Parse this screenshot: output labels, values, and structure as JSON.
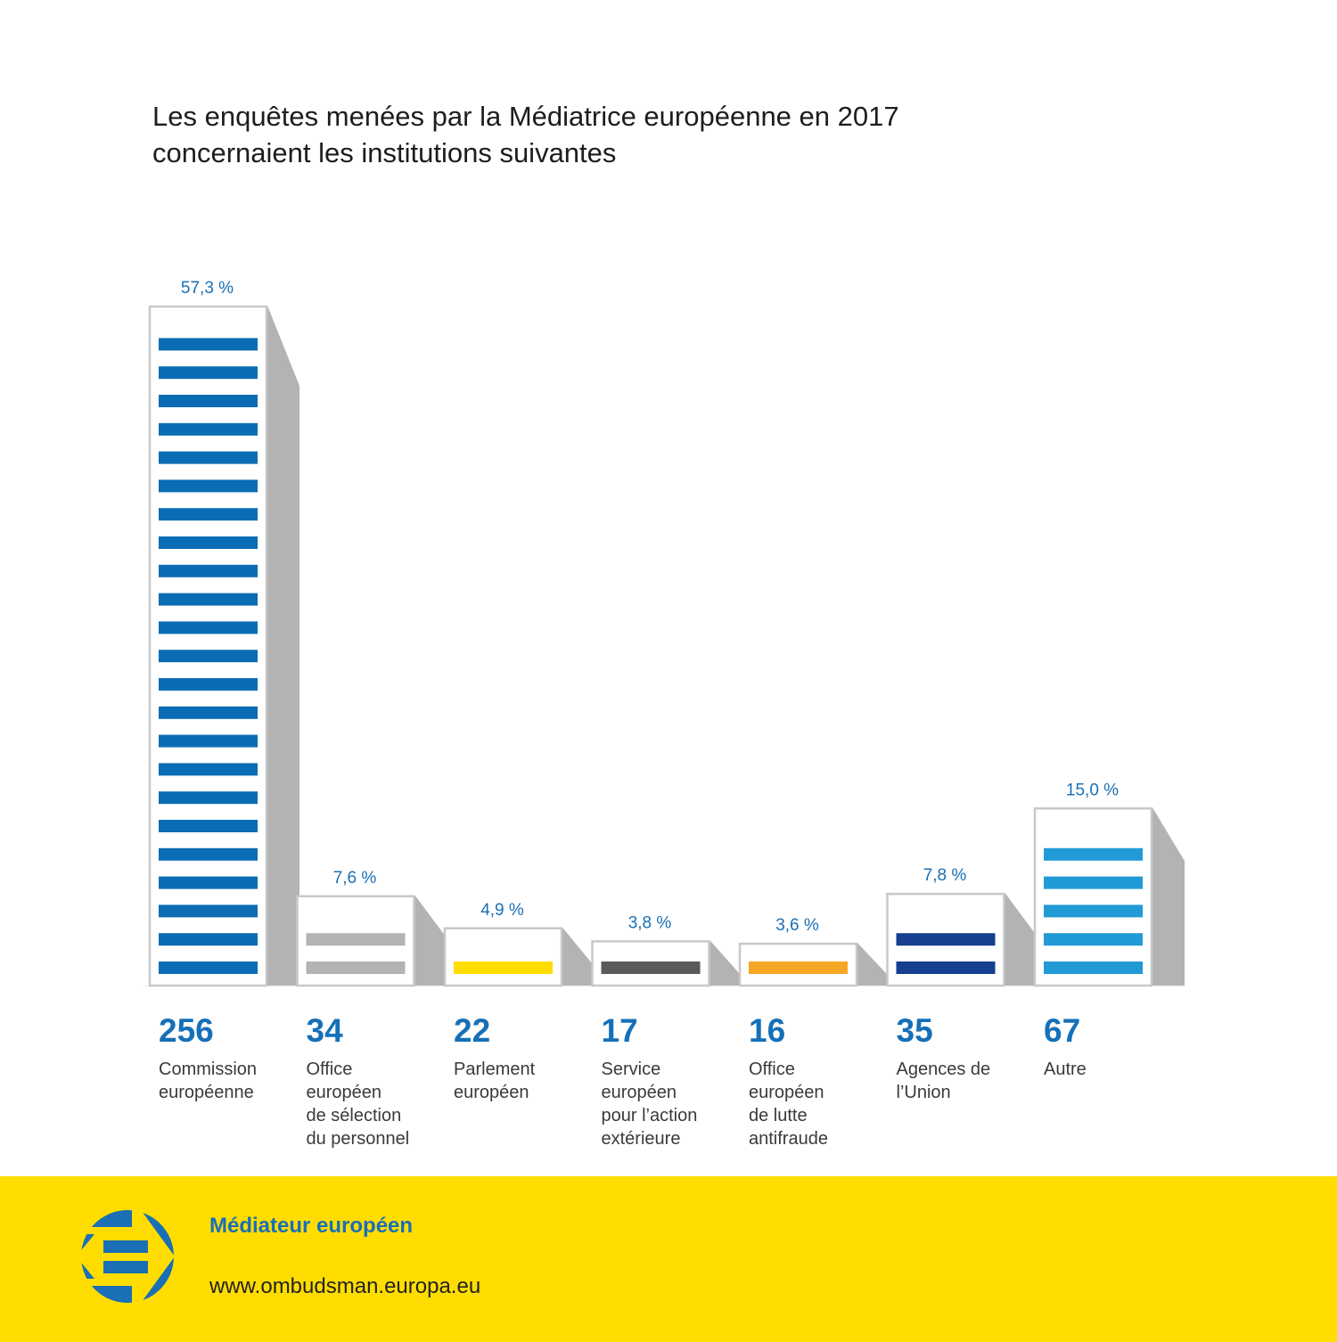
{
  "title": {
    "line1": "Les enquêtes menées par la Médiatrice européenne en 2017",
    "line2": "concernaient les institutions suivantes"
  },
  "chart_data": {
    "type": "bar",
    "title": "Les enquêtes menées par la Médiatrice européenne en 2017 concernaient les institutions suivantes",
    "xlabel": "",
    "ylabel": "",
    "ylim": [
      0,
      57.3
    ],
    "grid": false,
    "legend": "none",
    "categories": [
      "Commission européenne",
      "Office européen de sélection du personnel",
      "Parlement européen",
      "Service européen pour l’action extérieure",
      "Office européen de lutte antifraude",
      "Agences de l’Union",
      "Autre"
    ],
    "series": [
      {
        "name": "Pourcentage",
        "values": [
          57.3,
          7.6,
          4.9,
          3.8,
          3.6,
          7.8,
          15.0
        ]
      },
      {
        "name": "Nombre d'enquêtes",
        "values": [
          256,
          34,
          22,
          17,
          16,
          35,
          67
        ]
      }
    ],
    "bars": [
      {
        "count": "256",
        "pct_label": "57,3 %",
        "pct": 57.3,
        "color": "#0a6cb4",
        "label_lines": [
          "Commission",
          "européenne"
        ]
      },
      {
        "count": "34",
        "pct_label": "7,6 %",
        "pct": 7.6,
        "color": "#b3b3b3",
        "label_lines": [
          "Office",
          "européen",
          "de sélection",
          "du personnel"
        ]
      },
      {
        "count": "22",
        "pct_label": "4,9 %",
        "pct": 4.9,
        "color": "#ffdd00",
        "label_lines": [
          "Parlement",
          "européen"
        ]
      },
      {
        "count": "17",
        "pct_label": "3,8 %",
        "pct": 3.8,
        "color": "#5a5a5a",
        "label_lines": [
          "Service",
          "européen",
          "pour l’action",
          "extérieure"
        ]
      },
      {
        "count": "16",
        "pct_label": "3,6 %",
        "pct": 3.6,
        "color": "#f5a623",
        "label_lines": [
          "Office",
          "européen",
          "de lutte",
          "antifraude"
        ]
      },
      {
        "count": "35",
        "pct_label": "7,8 %",
        "pct": 7.8,
        "color": "#163f8f",
        "label_lines": [
          "Agences de",
          "l’Union"
        ]
      },
      {
        "count": "67",
        "pct_label": "15,0 %",
        "pct": 15.0,
        "color": "#229ad6",
        "label_lines": [
          "Autre"
        ]
      }
    ]
  },
  "footer": {
    "name": "Médiateur européen",
    "url": "www.ombudsman.europa.eu",
    "logo_icon": "european-ombudsman-logo-icon",
    "background": "#ffdd00",
    "accent": "#1a6fb5"
  }
}
